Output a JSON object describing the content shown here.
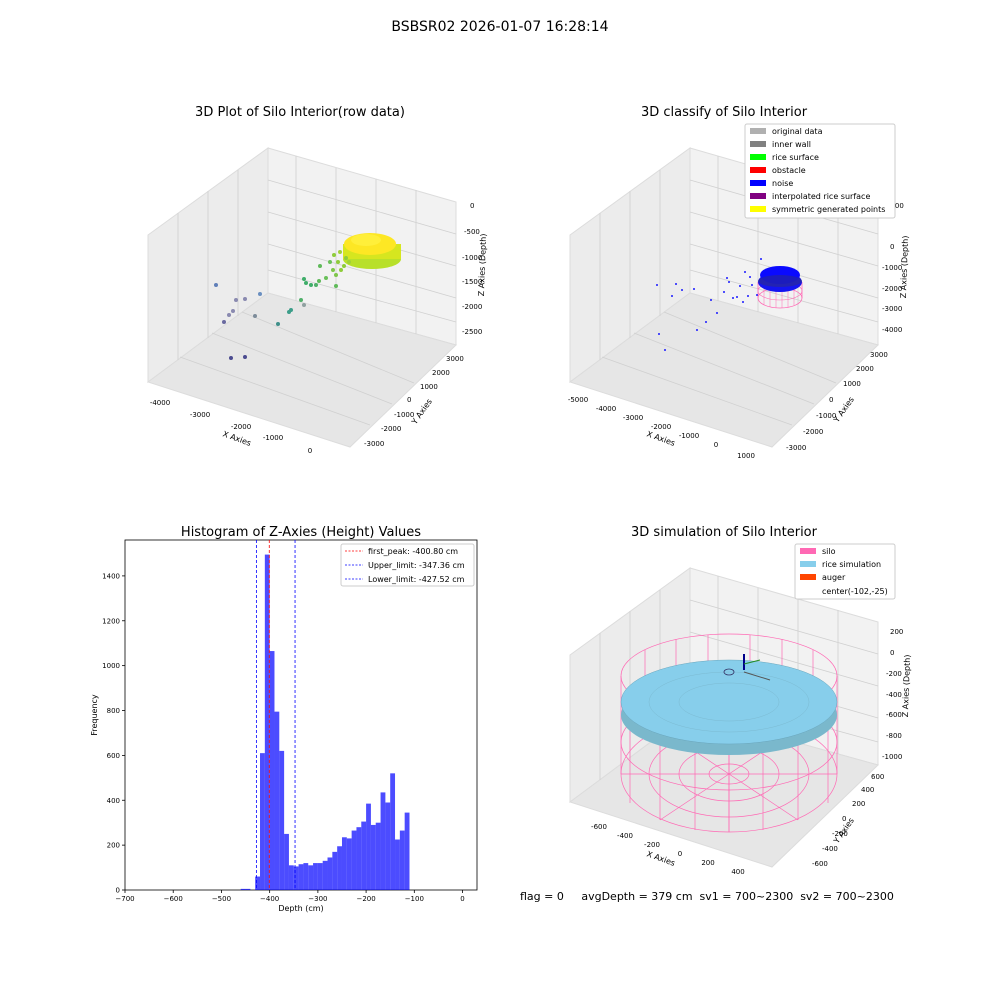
{
  "figure": {
    "suptitle": "BSBSR02 2026-01-07 16:28:14",
    "status_line": "flag = 0     avgDepth = 379 cm  sv1 = 700~2300  sv2 = 700~2300"
  },
  "panels": {
    "raw": {
      "title": "3D Plot of Silo Interior(row data)",
      "xlabel": "X Axies",
      "ylabel": "Y Axies",
      "zlabel": "Z Axies (Depth)",
      "xticks": [
        "-4000",
        "-3000",
        "-2000",
        "-1000",
        "0"
      ],
      "yticks": [
        "-3000",
        "-2000",
        "-1000",
        "0",
        "1000",
        "2000",
        "3000"
      ],
      "zticks": [
        "0",
        "-500",
        "-1000",
        "-1500",
        "-2000",
        "-2500"
      ]
    },
    "classify": {
      "title": "3D classify of Silo Interior",
      "xlabel": "X Axies",
      "ylabel": "Y Axies",
      "zlabel": "Z Axies (Depth)",
      "xticks": [
        "-5000",
        "-4000",
        "-3000",
        "-2000",
        "-1000",
        "0",
        "1000"
      ],
      "yticks": [
        "-3000",
        "-2000",
        "-1000",
        "0",
        "1000",
        "2000",
        "3000"
      ],
      "zticks": [
        "1000",
        "0",
        "-1000",
        "-2000",
        "-3000",
        "-4000"
      ],
      "legend": [
        {
          "label": "original data",
          "color": "#b0b0b0"
        },
        {
          "label": "inner wall",
          "color": "#808080"
        },
        {
          "label": "rice surface",
          "color": "#00ff00"
        },
        {
          "label": "obstacle",
          "color": "#ff0000"
        },
        {
          "label": "noise",
          "color": "#0000ff"
        },
        {
          "label": "interpolated rice surface",
          "color": "#800080"
        },
        {
          "label": "symmetric generated points",
          "color": "#ffff00"
        }
      ]
    },
    "simulation": {
      "title": "3D simulation of Silo Interior",
      "xlabel": "X Axies",
      "ylabel": "Y Axies",
      "zlabel": "Z Axies (Depth)",
      "xticks": [
        "-600",
        "-400",
        "-200",
        "0",
        "200",
        "400"
      ],
      "yticks": [
        "-600",
        "-400",
        "-200",
        "0",
        "200",
        "400",
        "600"
      ],
      "zticks": [
        "200",
        "0",
        "-200",
        "-400",
        "-600",
        "-800",
        "-1000"
      ],
      "legend": [
        {
          "label": "silo",
          "color": "#ff69b4"
        },
        {
          "label": "rice simulation",
          "color": "#87ceeb"
        },
        {
          "label": "auger",
          "color": "#ff4500"
        },
        {
          "label": "center(-102,-25)",
          "color": ""
        }
      ]
    }
  },
  "chart_data": {
    "type": "bar",
    "title": "Histogram of Z-Axies (Height) Values",
    "xlabel": "Depth (cm)",
    "ylabel": "Frequency",
    "xlim": [
      -700,
      30
    ],
    "ylim": [
      0,
      1560
    ],
    "xticks": [
      -700,
      -600,
      -500,
      -400,
      -300,
      -200,
      -100,
      0
    ],
    "yticks": [
      0,
      200,
      400,
      600,
      800,
      1000,
      1200,
      1400
    ],
    "bar_color": "#0000ff",
    "bin_width": 10,
    "bins": [
      {
        "x": -700,
        "v": 0
      },
      {
        "x": -690,
        "v": 0
      },
      {
        "x": -680,
        "v": 0
      },
      {
        "x": -670,
        "v": 0
      },
      {
        "x": -660,
        "v": 0
      },
      {
        "x": -650,
        "v": 0
      },
      {
        "x": -640,
        "v": 0
      },
      {
        "x": -630,
        "v": 0
      },
      {
        "x": -620,
        "v": 0
      },
      {
        "x": -610,
        "v": 0
      },
      {
        "x": -600,
        "v": 0
      },
      {
        "x": -590,
        "v": 0
      },
      {
        "x": -580,
        "v": 0
      },
      {
        "x": -570,
        "v": 0
      },
      {
        "x": -560,
        "v": 0
      },
      {
        "x": -550,
        "v": 0
      },
      {
        "x": -540,
        "v": 0
      },
      {
        "x": -530,
        "v": 0
      },
      {
        "x": -520,
        "v": 0
      },
      {
        "x": -510,
        "v": 0
      },
      {
        "x": -500,
        "v": 0
      },
      {
        "x": -490,
        "v": 0
      },
      {
        "x": -480,
        "v": 0
      },
      {
        "x": -470,
        "v": 0
      },
      {
        "x": -460,
        "v": 5
      },
      {
        "x": -450,
        "v": 5
      },
      {
        "x": -440,
        "v": 0
      },
      {
        "x": -430,
        "v": 60
      },
      {
        "x": -420,
        "v": 610
      },
      {
        "x": -410,
        "v": 1495
      },
      {
        "x": -400,
        "v": 1065
      },
      {
        "x": -390,
        "v": 795
      },
      {
        "x": -380,
        "v": 620
      },
      {
        "x": -370,
        "v": 250
      },
      {
        "x": -360,
        "v": 110
      },
      {
        "x": -350,
        "v": 105
      },
      {
        "x": -340,
        "v": 115
      },
      {
        "x": -330,
        "v": 120
      },
      {
        "x": -320,
        "v": 110
      },
      {
        "x": -310,
        "v": 120
      },
      {
        "x": -300,
        "v": 120
      },
      {
        "x": -290,
        "v": 130
      },
      {
        "x": -280,
        "v": 145
      },
      {
        "x": -270,
        "v": 170
      },
      {
        "x": -260,
        "v": 195
      },
      {
        "x": -250,
        "v": 235
      },
      {
        "x": -240,
        "v": 230
      },
      {
        "x": -230,
        "v": 265
      },
      {
        "x": -220,
        "v": 280
      },
      {
        "x": -210,
        "v": 305
      },
      {
        "x": -200,
        "v": 385
      },
      {
        "x": -190,
        "v": 290
      },
      {
        "x": -180,
        "v": 300
      },
      {
        "x": -170,
        "v": 435
      },
      {
        "x": -160,
        "v": 390
      },
      {
        "x": -150,
        "v": 520
      },
      {
        "x": -140,
        "v": 225
      },
      {
        "x": -130,
        "v": 265
      },
      {
        "x": -120,
        "v": 345
      }
    ],
    "vlines": [
      {
        "x": -400.8,
        "color": "#ff0000",
        "label": "first_peak: -400.80 cm"
      },
      {
        "x": -347.36,
        "color": "#0000ff",
        "label": "Upper_limit: -347.36 cm"
      },
      {
        "x": -427.52,
        "color": "#0000ff",
        "label": "Lower_limit: -427.52 cm"
      }
    ]
  }
}
